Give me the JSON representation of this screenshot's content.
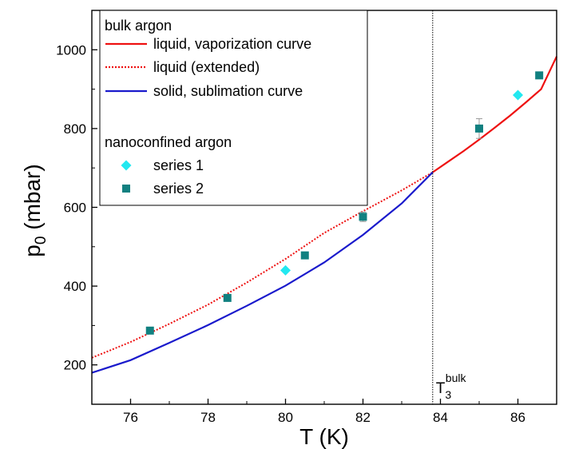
{
  "chart_data": {
    "type": "scatter",
    "xlabel": "T (K)",
    "ylabel_main": "p",
    "ylabel_sub": "0",
    "ylabel_unit": " (mbar)",
    "xlim": [
      75,
      87
    ],
    "ylim": [
      100,
      1100
    ],
    "x_ticks": [
      76,
      78,
      80,
      82,
      84,
      86
    ],
    "y_ticks": [
      200,
      400,
      600,
      800,
      1000
    ],
    "grid": false,
    "legend_position": "top-left",
    "legend": {
      "group1_title": "bulk argon",
      "group2_title": "nanoconfined argon"
    },
    "triple_point": {
      "x": 83.8,
      "label_main": "T",
      "label_sub": "3",
      "label_sup": "bulk"
    },
    "lines": [
      {
        "name": "liquid, vaporization curve",
        "color": "#ee1111",
        "style": "solid",
        "x": [
          83.8,
          84.2,
          84.6,
          85.0,
          85.4,
          85.8,
          86.2,
          86.6,
          87.0
        ],
        "y": [
          689,
          716,
          743,
          772,
          802,
          833,
          866,
          900,
          983
        ]
      },
      {
        "name": "liquid (extended)",
        "color": "#ee1111",
        "style": "dotted",
        "x": [
          75.0,
          76.0,
          77.0,
          78.0,
          79.0,
          80.0,
          81.0,
          82.0,
          83.0,
          83.8
        ],
        "y": [
          218,
          258,
          304,
          353,
          409,
          469,
          535,
          590,
          643,
          689
        ]
      },
      {
        "name": "solid, sublimation curve",
        "color": "#1a1acc",
        "style": "solid",
        "x": [
          75.0,
          76.0,
          77.0,
          78.0,
          79.0,
          80.0,
          81.0,
          82.0,
          83.0,
          83.8
        ],
        "y": [
          180,
          212,
          256,
          301,
          350,
          401,
          460,
          530,
          610,
          689
        ]
      }
    ],
    "series": [
      {
        "name": "series 1",
        "color": "#22e8f0",
        "marker": "diamond",
        "points": [
          {
            "x": 80.0,
            "y": 440
          },
          {
            "x": 86.0,
            "y": 885
          }
        ]
      },
      {
        "name": "series 2",
        "color": "#118080",
        "marker": "square",
        "points": [
          {
            "x": 76.5,
            "y": 287
          },
          {
            "x": 78.5,
            "y": 370
          },
          {
            "x": 80.5,
            "y": 478
          },
          {
            "x": 82.0,
            "y": 576,
            "err": 12
          },
          {
            "x": 85.0,
            "y": 800,
            "err": 25
          },
          {
            "x": 86.55,
            "y": 935
          }
        ]
      }
    ]
  }
}
